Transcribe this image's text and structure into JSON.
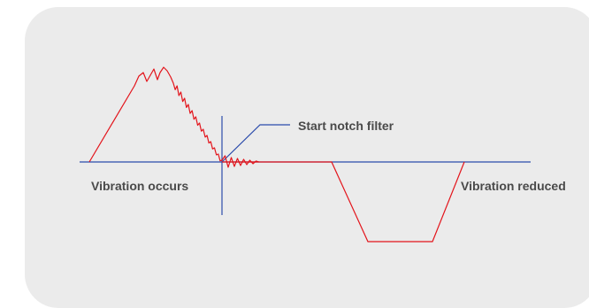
{
  "labels": {
    "vibration_occurs": "Vibration occurs",
    "start_notch_filter": "Start notch filter",
    "vibration_reduced": "Vibration reduced"
  },
  "colors": {
    "panel_background": "#ebebeb",
    "signal": "#e3141b",
    "axis": "#2b4bab",
    "text": "#4a4a4a"
  }
}
